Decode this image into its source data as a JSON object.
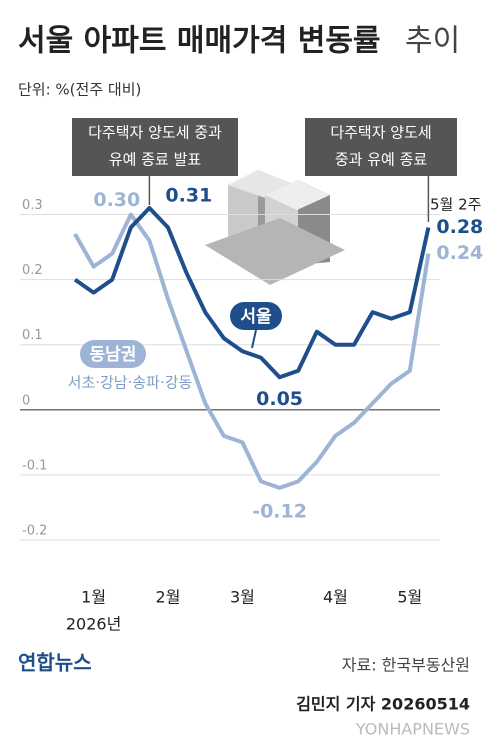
{
  "chart_data": {
    "type": "line",
    "title": "서울 아파트 매매가격 변동률",
    "title_suffix": "추이",
    "subtitle": "단위: %(전주 대비)",
    "categories": [
      null,
      "1월",
      null,
      null,
      null,
      "2월",
      null,
      null,
      null,
      "3월",
      null,
      null,
      null,
      null,
      "4월",
      null,
      null,
      null,
      "5월",
      null
    ],
    "year_label": "2026년",
    "last_point_label": "5월 2주",
    "series": [
      {
        "name": "서울",
        "color": "#1f4e8c",
        "values": [
          0.2,
          0.18,
          0.2,
          0.28,
          0.31,
          0.28,
          0.21,
          0.15,
          0.11,
          0.09,
          0.08,
          0.05,
          0.06,
          0.12,
          0.1,
          0.1,
          0.15,
          0.14,
          0.15,
          0.28
        ],
        "value_labels": [
          null,
          null,
          null,
          null,
          "0.31",
          null,
          null,
          null,
          null,
          null,
          null,
          "0.05",
          null,
          null,
          null,
          null,
          null,
          null,
          null,
          "0.28"
        ]
      },
      {
        "name": "동남권",
        "detail": "서초·강남·송파·강동",
        "color": "#9db4d6",
        "values": [
          0.27,
          0.22,
          0.24,
          0.3,
          0.26,
          0.17,
          0.09,
          0.01,
          -0.04,
          -0.05,
          -0.11,
          -0.12,
          -0.11,
          -0.08,
          -0.04,
          -0.02,
          0.01,
          0.04,
          0.06,
          0.24
        ],
        "value_labels": [
          null,
          null,
          null,
          "0.30",
          null,
          null,
          null,
          null,
          null,
          null,
          null,
          "-0.12",
          null,
          null,
          null,
          null,
          null,
          null,
          null,
          "0.24"
        ]
      }
    ],
    "ylim": [
      -0.22,
      0.33
    ],
    "yticks": [
      0.3,
      0.2,
      0.1,
      0,
      -0.1,
      -0.2
    ],
    "grid": true,
    "annotations": [
      {
        "lines": [
          "다주택자 양도세 중과",
          "유예 종료 발표"
        ],
        "index": 4
      },
      {
        "lines": [
          "다주택자 양도세",
          "중과 유예 종료"
        ],
        "index": 19
      }
    ],
    "source": "자료: 한국부동산원",
    "logo": "연합뉴스",
    "credit": "김민지 기자 20260514",
    "watermark": "YONHAPNEWS"
  }
}
